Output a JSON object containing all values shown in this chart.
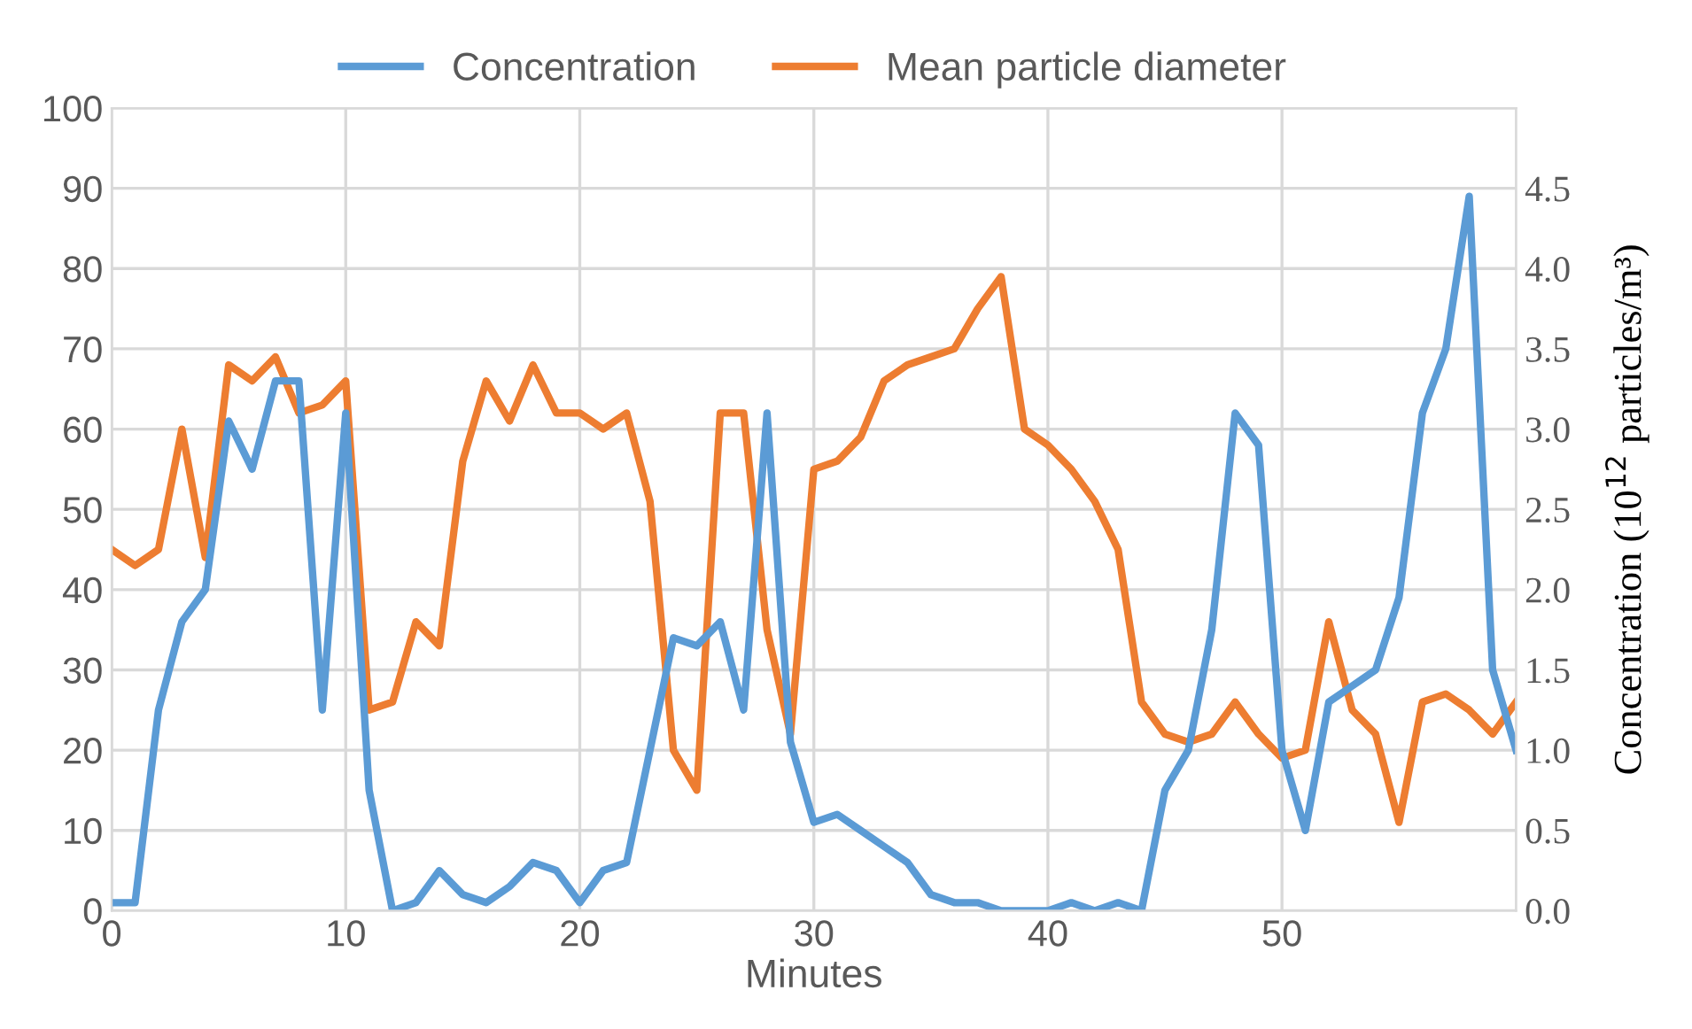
{
  "chart_data": {
    "type": "line",
    "xlabel": "Minutes",
    "y2label": "Concentration (10$^{12}$ particles/m³)",
    "x": [
      0,
      1,
      2,
      3,
      4,
      5,
      6,
      7,
      8,
      9,
      10,
      11,
      12,
      13,
      14,
      15,
      16,
      17,
      18,
      19,
      20,
      21,
      22,
      23,
      24,
      25,
      26,
      27,
      28,
      29,
      30,
      31,
      32,
      33,
      34,
      35,
      36,
      37,
      38,
      39,
      40,
      41,
      42,
      43,
      44,
      45,
      46,
      47,
      48,
      49,
      50,
      51,
      52,
      53,
      54,
      55,
      56,
      57,
      58,
      59,
      60
    ],
    "series": [
      {
        "name": "Concentration",
        "color": "#5b9bd5",
        "axis": "y2",
        "values": [
          0.05,
          0.05,
          1.25,
          1.8,
          2.0,
          3.05,
          2.75,
          3.3,
          3.3,
          1.25,
          3.1,
          0.75,
          0,
          0.05,
          0.25,
          0.1,
          0.05,
          0.15,
          0.3,
          0.25,
          0.05,
          0.25,
          0.3,
          1.0,
          1.7,
          1.65,
          1.8,
          1.25,
          3.1,
          1.05,
          0.55,
          0.6,
          0.5,
          0.4,
          0.3,
          0.1,
          0.05,
          0.05,
          0,
          0,
          0,
          0.05,
          0,
          0.05,
          0,
          0.75,
          1.0,
          1.75,
          3.1,
          2.9,
          1.0,
          0.5,
          1.3,
          1.4,
          1.5,
          1.95,
          3.1,
          3.5,
          4.45,
          1.5,
          1.0
        ]
      },
      {
        "name": "Mean particle diameter",
        "color": "#ed7d31",
        "values": [
          45,
          43,
          45,
          60,
          44,
          68,
          66,
          69,
          62,
          63,
          66,
          25,
          26,
          36,
          33,
          56,
          66,
          61,
          68,
          62,
          62,
          60,
          62,
          51,
          20,
          15,
          62,
          62,
          35,
          22,
          55,
          56,
          59,
          66,
          68,
          69,
          70,
          75,
          79,
          60,
          58,
          55,
          51,
          45,
          26,
          22,
          21,
          22,
          26,
          22,
          19,
          20,
          36,
          25,
          22,
          11,
          26,
          27,
          25,
          22,
          26
        ]
      }
    ],
    "xlim": [
      0,
      60
    ],
    "xticks": [
      0,
      10,
      20,
      30,
      40,
      50
    ],
    "ylim": [
      0,
      100
    ],
    "yticks": [
      0,
      10,
      20,
      30,
      40,
      50,
      60,
      70,
      80,
      90,
      100
    ],
    "y2lim": [
      0,
      5
    ],
    "y2ticks": [
      {
        "value": 0,
        "label": "0.0"
      },
      {
        "value": 0.5,
        "label": "0.5"
      },
      {
        "value": 1,
        "label": "1.0"
      },
      {
        "value": 1.5,
        "label": "1.5"
      },
      {
        "value": 2,
        "label": "2.0"
      },
      {
        "value": 2.5,
        "label": "2.5"
      },
      {
        "value": 3,
        "label": "3.0"
      },
      {
        "value": 3.5,
        "label": "3.5"
      },
      {
        "value": 4,
        "label": "4.0"
      },
      {
        "value": 4.5,
        "label": "4.5"
      }
    ],
    "grid": true,
    "legend": "top",
    "marker": "none",
    "line_style": "solid"
  }
}
